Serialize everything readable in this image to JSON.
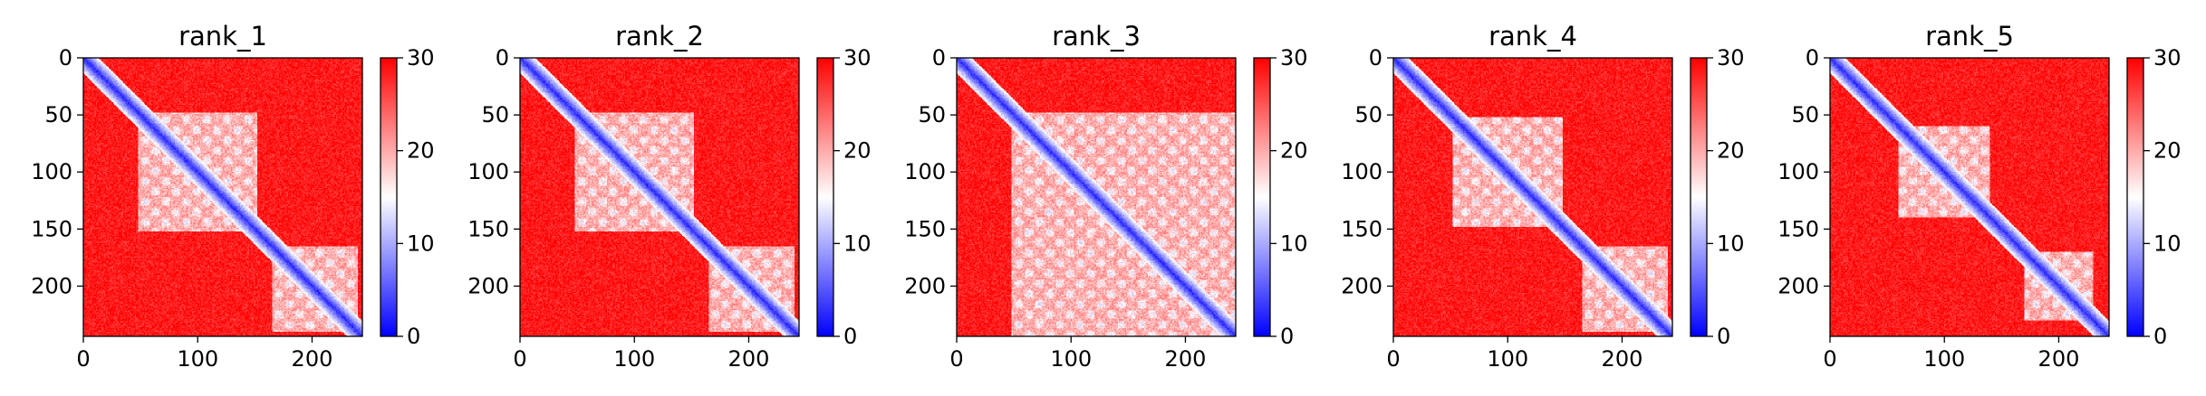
{
  "chart_data": [
    {
      "type": "heatmap",
      "title": "rank_1",
      "n": 244,
      "xlim": [
        0,
        244
      ],
      "ylim": [
        244,
        0
      ],
      "xticks": [
        0,
        100,
        200
      ],
      "yticks": [
        0,
        50,
        100,
        150,
        200
      ],
      "colorbar": {
        "min": 0,
        "max": 30,
        "ticks": [
          0,
          10,
          20,
          30
        ]
      },
      "domains": [
        [
          0,
          48
        ],
        [
          48,
          152
        ],
        [
          152,
          244
        ]
      ],
      "patches": [
        [
          48,
          152,
          48,
          152
        ],
        [
          165,
          240,
          165,
          240
        ]
      ],
      "diagonal": "low"
    },
    {
      "type": "heatmap",
      "title": "rank_2",
      "n": 244,
      "xlim": [
        0,
        244
      ],
      "ylim": [
        244,
        0
      ],
      "xticks": [
        0,
        100,
        200
      ],
      "yticks": [
        0,
        50,
        100,
        150,
        200
      ],
      "colorbar": {
        "min": 0,
        "max": 30,
        "ticks": [
          0,
          10,
          20,
          30
        ]
      },
      "domains": [
        [
          0,
          48
        ],
        [
          48,
          152
        ],
        [
          152,
          244
        ]
      ],
      "patches": [
        [
          48,
          152,
          48,
          152
        ],
        [
          165,
          240,
          165,
          240
        ]
      ],
      "diagonal": "low"
    },
    {
      "type": "heatmap",
      "title": "rank_3",
      "n": 244,
      "xlim": [
        0,
        244
      ],
      "ylim": [
        244,
        0
      ],
      "xticks": [
        0,
        100,
        200
      ],
      "yticks": [
        0,
        50,
        100,
        150,
        200
      ],
      "colorbar": {
        "min": 0,
        "max": 30,
        "ticks": [
          0,
          10,
          20,
          30
        ]
      },
      "domains": [
        [
          0,
          48
        ],
        [
          48,
          152
        ],
        [
          152,
          244
        ]
      ],
      "patches": [
        [
          48,
          152,
          48,
          152
        ],
        [
          150,
          244,
          150,
          244
        ],
        [
          48,
          152,
          150,
          244
        ]
      ],
      "diagonal": "low"
    },
    {
      "type": "heatmap",
      "title": "rank_4",
      "n": 244,
      "xlim": [
        0,
        244
      ],
      "ylim": [
        244,
        0
      ],
      "xticks": [
        0,
        100,
        200
      ],
      "yticks": [
        0,
        50,
        100,
        150,
        200
      ],
      "colorbar": {
        "min": 0,
        "max": 30,
        "ticks": [
          0,
          10,
          20,
          30
        ]
      },
      "domains": [
        [
          0,
          48
        ],
        [
          48,
          152
        ],
        [
          152,
          244
        ]
      ],
      "patches": [
        [
          52,
          148,
          52,
          148
        ],
        [
          165,
          240,
          165,
          240
        ]
      ],
      "diagonal": "low"
    },
    {
      "type": "heatmap",
      "title": "rank_5",
      "n": 244,
      "xlim": [
        0,
        244
      ],
      "ylim": [
        244,
        0
      ],
      "xticks": [
        0,
        100,
        200
      ],
      "yticks": [
        0,
        50,
        100,
        150,
        200
      ],
      "colorbar": {
        "min": 0,
        "max": 30,
        "ticks": [
          0,
          10,
          20,
          30
        ]
      },
      "domains": [
        [
          0,
          48
        ],
        [
          48,
          152
        ],
        [
          152,
          244
        ]
      ],
      "patches": [
        [
          60,
          140,
          60,
          140
        ],
        [
          170,
          230,
          170,
          230
        ]
      ],
      "diagonal": "low"
    }
  ]
}
